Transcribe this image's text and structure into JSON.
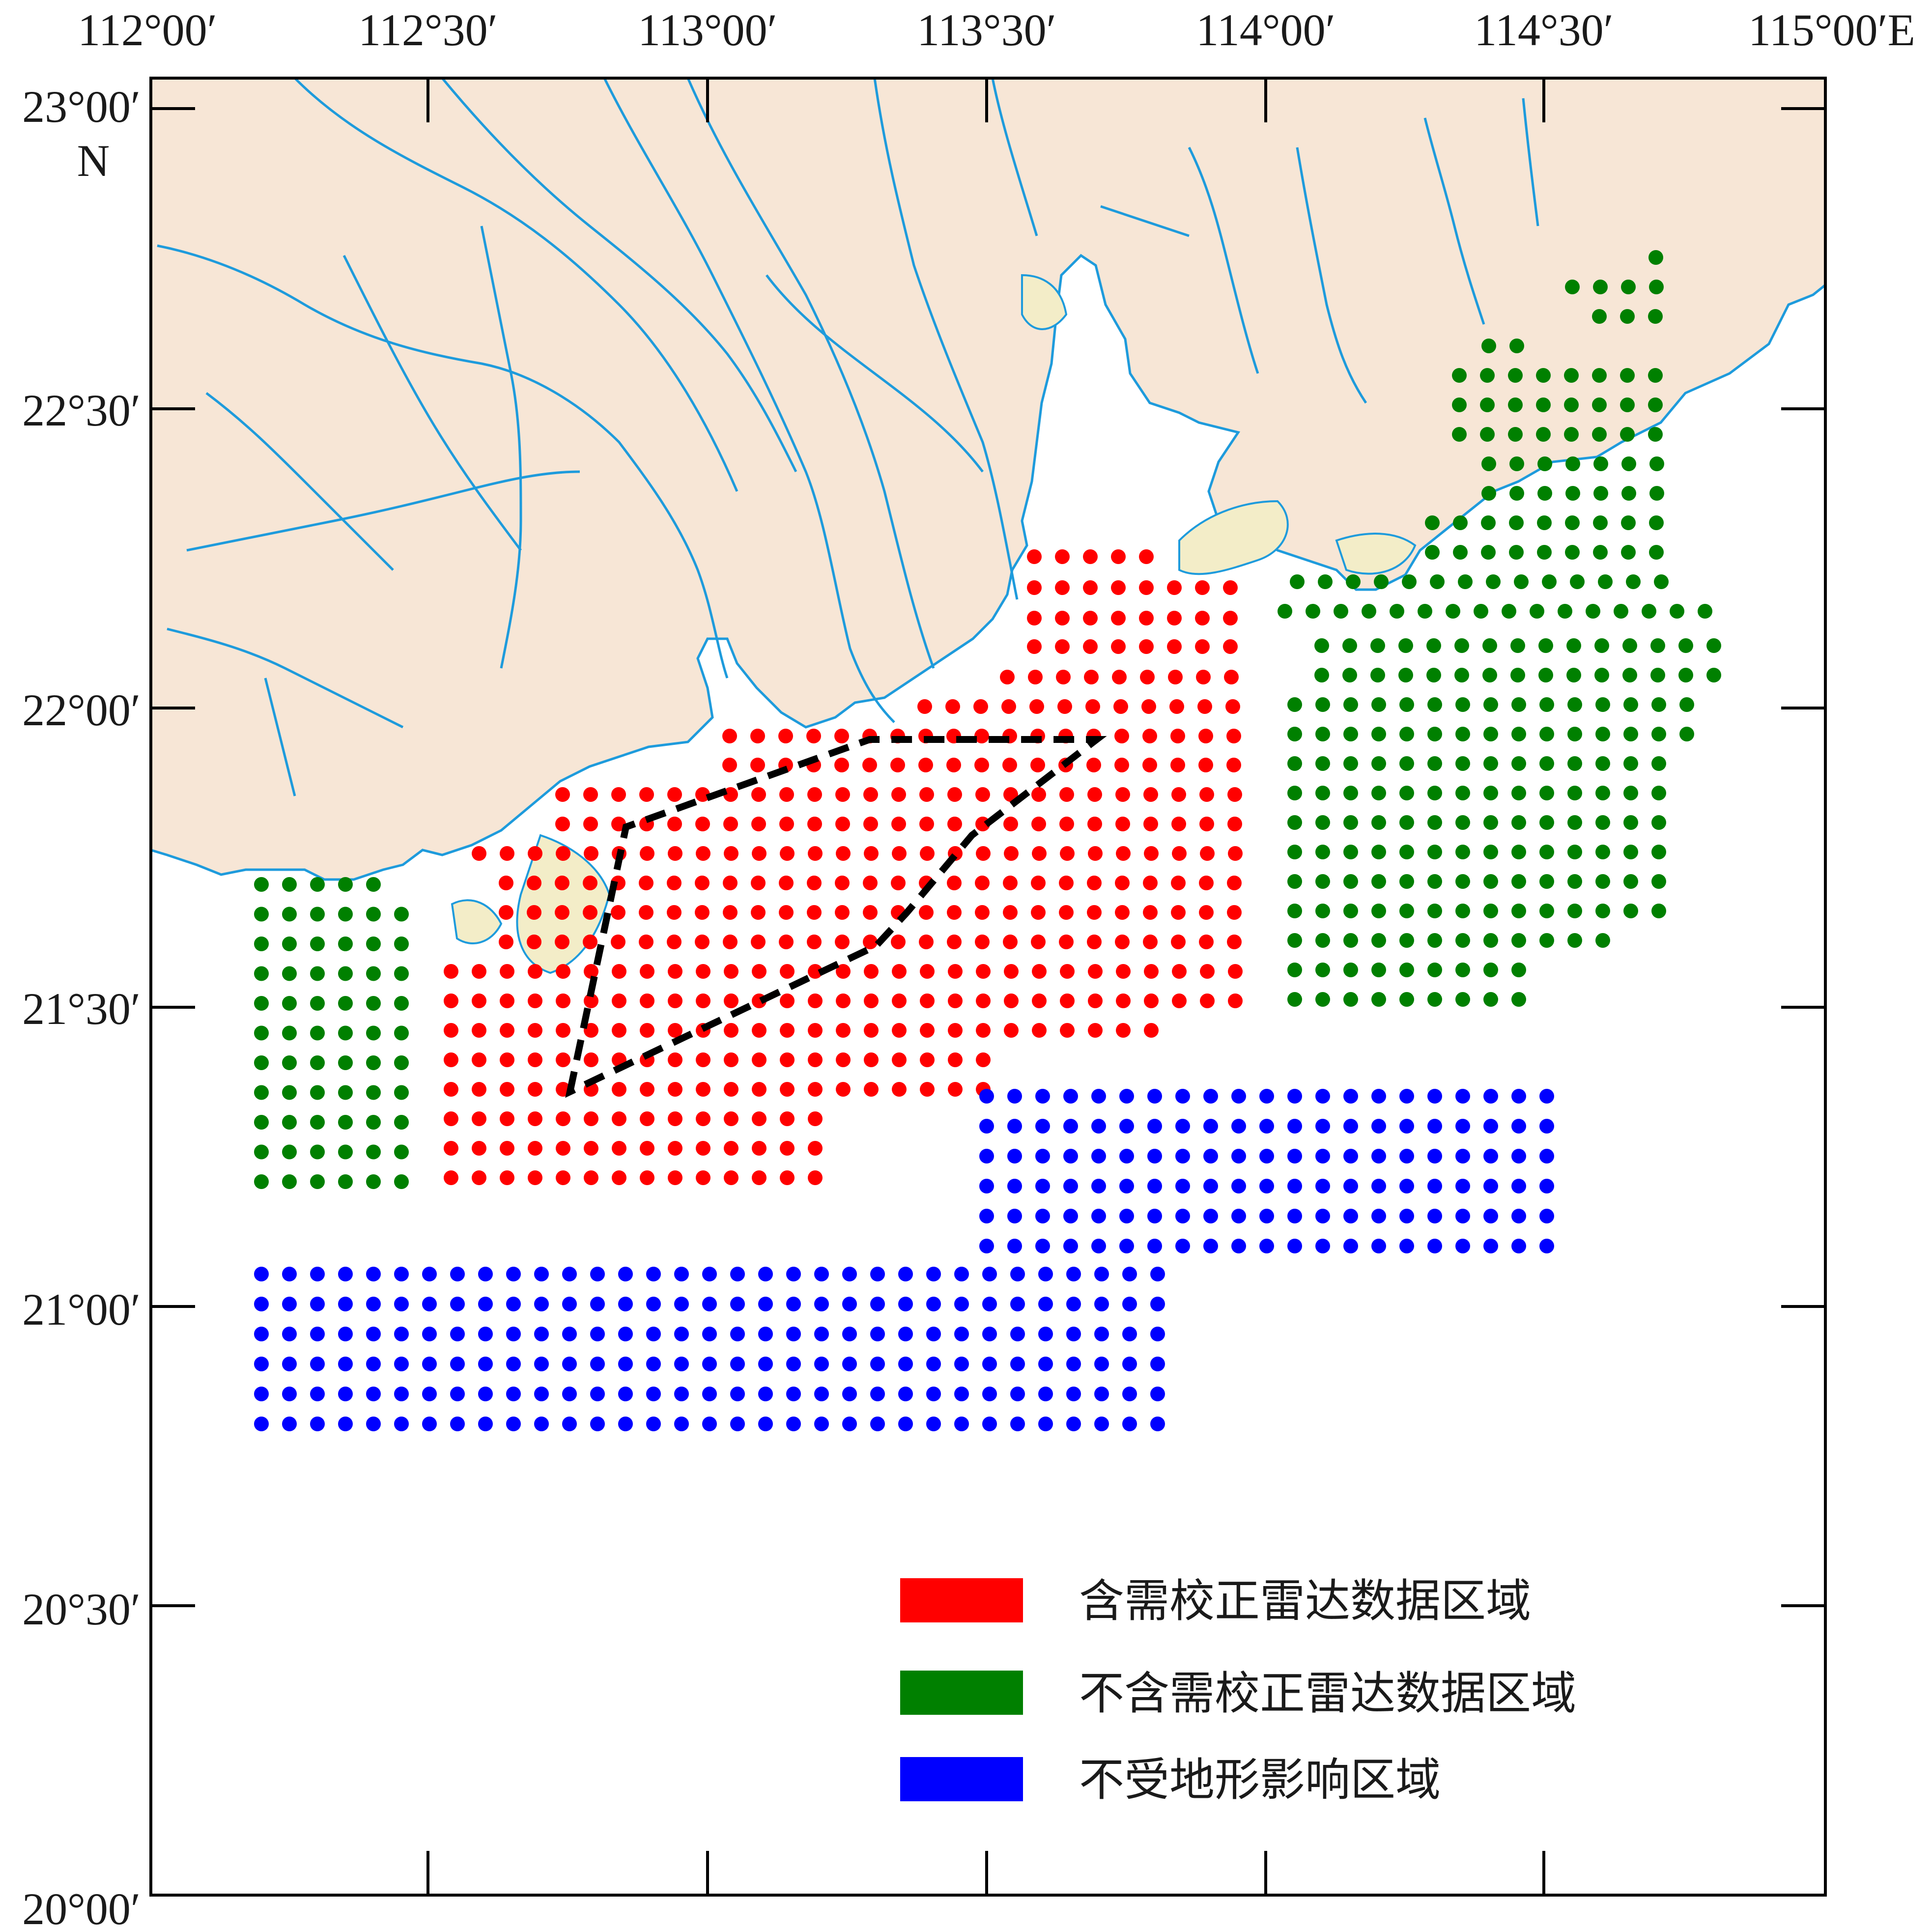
{
  "map": {
    "x_ticks": [
      "112°00′",
      "112°30′",
      "113°00′",
      "113°30′",
      "114°00′",
      "114°30′",
      "115°00′E"
    ],
    "y_ticks": [
      "23°00′",
      "22°30′",
      "22°00′",
      "21°30′",
      "21°00′",
      "20°30′",
      "20°00′"
    ],
    "north_label": "N",
    "lon_range": [
      112.0,
      115.0
    ],
    "lat_range": [
      20.0,
      23.0
    ],
    "colors": {
      "land": "#f7e6d6",
      "river": "#1e9bdc",
      "island": "#f3edc8",
      "corrected": "#ff0000",
      "uncorrected": "#008000",
      "unaffected": "#0000ff"
    },
    "polygon": {
      "style": "dashed",
      "vertices": [
        [
          112.55,
          21.357
        ],
        [
          112.65,
          21.8
        ],
        [
          112.93,
          21.883
        ],
        [
          113.3,
          21.95
        ],
        [
          113.68,
          21.95
        ],
        [
          113.53,
          21.78
        ],
        [
          113.3,
          21.6
        ]
      ]
    }
  },
  "legend": [
    {
      "label": "含需校正雷达数据区域",
      "color": "#ff0000"
    },
    {
      "label": "不含需校正雷达数据区域",
      "color": "#008000"
    },
    {
      "label": "不受地形影响区域",
      "color": "#0000ff"
    }
  ]
}
